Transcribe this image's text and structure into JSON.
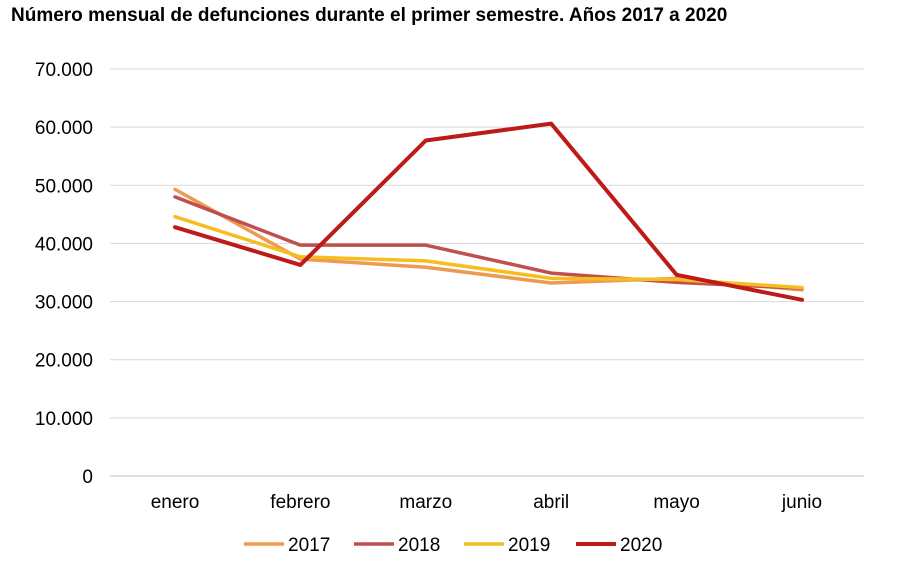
{
  "chart_data": {
    "type": "line",
    "title": "Número mensual de defunciones durante el primer semestre. Años 2017 a 2020",
    "xlabel": "",
    "ylabel": "",
    "categories": [
      "enero",
      "febrero",
      "marzo",
      "abril",
      "mayo",
      "junio"
    ],
    "ylim": [
      0,
      70000
    ],
    "yticks": [
      0,
      10000,
      20000,
      30000,
      40000,
      50000,
      60000,
      70000
    ],
    "ytick_labels": [
      "0",
      "10.000",
      "20.000",
      "30.000",
      "40.000",
      "50.000",
      "60.000",
      "70.000"
    ],
    "grid": true,
    "legend_position": "bottom",
    "series": [
      {
        "name": "2017",
        "color": "#ED9A52",
        "values": [
          49300,
          37300,
          35900,
          33200,
          34000,
          32000
        ]
      },
      {
        "name": "2018",
        "color": "#C0504D",
        "values": [
          48000,
          39700,
          39700,
          34900,
          33300,
          32300
        ]
      },
      {
        "name": "2019",
        "color": "#F5BE1E",
        "values": [
          44600,
          37700,
          37000,
          34000,
          33800,
          32400
        ]
      },
      {
        "name": "2020",
        "color": "#BE1A1A",
        "values": [
          42800,
          36300,
          57700,
          60600,
          34600,
          30300
        ]
      }
    ]
  }
}
